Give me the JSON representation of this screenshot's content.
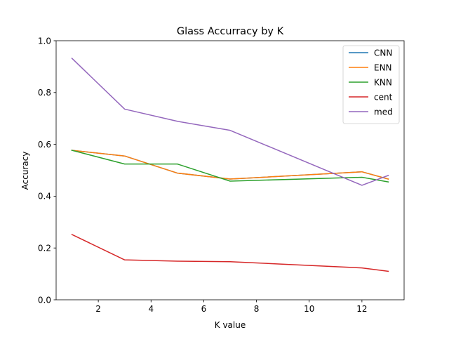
{
  "chart_data": {
    "type": "line",
    "title": "Glass Accurracy by K",
    "xlabel": "K value",
    "ylabel": "Accuracy",
    "xlim": [
      0.4,
      13.6
    ],
    "ylim": [
      0.0,
      1.0
    ],
    "xticks": [
      2,
      4,
      6,
      8,
      10,
      12
    ],
    "yticks": [
      0.0,
      0.2,
      0.4,
      0.6,
      0.8,
      1.0
    ],
    "grid": false,
    "legend_position": "top-right",
    "x": [
      1,
      3,
      5,
      7,
      12,
      13
    ],
    "series": [
      {
        "name": "CNN",
        "color": "#1f77b4",
        "values": [
          0.577,
          0.555,
          0.489,
          0.466,
          0.494,
          0.466
        ]
      },
      {
        "name": "ENN",
        "color": "#ff7f0e",
        "values": [
          0.577,
          0.555,
          0.489,
          0.466,
          0.494,
          0.466
        ]
      },
      {
        "name": "KNN",
        "color": "#2ca02c",
        "values": [
          0.577,
          0.524,
          0.524,
          0.458,
          0.473,
          0.455
        ]
      },
      {
        "name": "cent",
        "color": "#d62728",
        "values": [
          0.252,
          0.154,
          0.149,
          0.147,
          0.123,
          0.11
        ]
      },
      {
        "name": "med",
        "color": "#9467bd",
        "values": [
          0.932,
          0.736,
          0.689,
          0.654,
          0.442,
          0.48
        ]
      }
    ]
  }
}
